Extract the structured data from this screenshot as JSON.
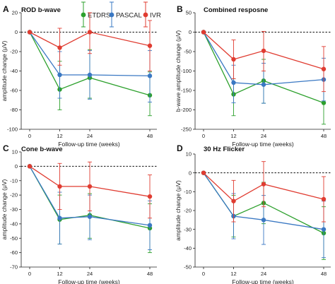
{
  "legend": {
    "series": [
      {
        "name": "ETDRS",
        "color": "#2ca02c"
      },
      {
        "name": "PASCAL",
        "color": "#3a78c3"
      },
      {
        "name": "IVR",
        "color": "#e03c31"
      }
    ]
  },
  "chart_data": [
    {
      "type": "line",
      "letter": "A",
      "title": "ROD b-wave",
      "xlabel": "Follow-up time (weeks)",
      "ylabel": "amplitude change (μV)",
      "x_ticks": [
        0,
        12,
        24,
        48
      ],
      "x_tick_labels": [
        "0",
        "12",
        "24",
        "48"
      ],
      "ylim": [
        -100,
        20
      ],
      "y_ticks": [
        -100,
        -80,
        -60,
        -40,
        -20,
        0,
        20
      ],
      "y_tick_labels": [
        "-100",
        "-80",
        "-60",
        "-40",
        "-20",
        "0",
        "20"
      ],
      "reference_line": 0,
      "series": [
        {
          "name": "ETDRS",
          "x": [
            0,
            12,
            24,
            48
          ],
          "values": [
            0,
            -59,
            -47,
            -65
          ],
          "err_up": [
            0,
            29,
            29,
            24
          ],
          "err_down": [
            0,
            21,
            21,
            21
          ]
        },
        {
          "name": "PASCAL",
          "x": [
            0,
            12,
            24,
            48
          ],
          "values": [
            0,
            -44,
            -44,
            -45
          ],
          "err_up": [
            0,
            24,
            25,
            26
          ],
          "err_down": [
            0,
            24,
            25,
            27
          ]
        },
        {
          "name": "IVR",
          "x": [
            0,
            12,
            24,
            48
          ],
          "values": [
            0,
            -16,
            0,
            -14
          ],
          "err_up": [
            0,
            20,
            20,
            26
          ],
          "err_down": [
            0,
            18,
            22,
            26
          ]
        }
      ]
    },
    {
      "type": "line",
      "letter": "B",
      "title": "Combined resposne",
      "xlabel": "Follow-up time (weeks)",
      "ylabel": "b-wave amplitude change (μV)",
      "x_ticks": [
        0,
        12,
        24,
        48
      ],
      "x_tick_labels": [
        "0",
        "12",
        "24",
        "48"
      ],
      "ylim": [
        -250,
        50
      ],
      "y_ticks": [
        -250,
        -200,
        -150,
        -100,
        -50,
        0,
        50
      ],
      "y_tick_labels": [
        "-250",
        "-200",
        "-150",
        "-100",
        "-50",
        "0",
        "50"
      ],
      "reference_line": 0,
      "series": [
        {
          "name": "ETDRS",
          "x": [
            0,
            12,
            24,
            48
          ],
          "values": [
            0,
            -160,
            -125,
            -182
          ],
          "err_up": [
            0,
            40,
            55,
            60
          ],
          "err_down": [
            0,
            55,
            58,
            55
          ]
        },
        {
          "name": "PASCAL",
          "x": [
            0,
            12,
            24,
            48
          ],
          "values": [
            0,
            -130,
            -135,
            -122
          ],
          "err_up": [
            0,
            45,
            55,
            55
          ],
          "err_down": [
            0,
            52,
            48,
            55
          ]
        },
        {
          "name": "IVR",
          "x": [
            0,
            12,
            24,
            48
          ],
          "values": [
            0,
            -70,
            -48,
            -95
          ],
          "err_up": [
            0,
            50,
            50,
            58
          ],
          "err_down": [
            0,
            50,
            52,
            58
          ]
        }
      ]
    },
    {
      "type": "line",
      "letter": "C",
      "title": "Cone b-wave",
      "xlabel": "Follow-up time (weeks)",
      "ylabel": "amplitude change (μV)",
      "x_ticks": [
        0,
        12,
        24,
        48
      ],
      "x_tick_labels": [
        "0",
        "12",
        "24",
        "48"
      ],
      "ylim": [
        -70,
        10
      ],
      "y_ticks": [
        -70,
        -60,
        -50,
        -40,
        -30,
        -20,
        -10,
        0,
        10
      ],
      "y_tick_labels": [
        "-70",
        "-60",
        "-50",
        "-40",
        "-30",
        "-20",
        "-10",
        "0",
        "10"
      ],
      "reference_line": 0,
      "series": [
        {
          "name": "ETDRS",
          "x": [
            0,
            12,
            24,
            48
          ],
          "values": [
            0,
            -37,
            -34,
            -43
          ],
          "err_up": [
            0,
            17,
            15,
            17
          ],
          "err_down": [
            0,
            17,
            16,
            17
          ]
        },
        {
          "name": "PASCAL",
          "x": [
            0,
            12,
            24,
            48
          ],
          "values": [
            0,
            -36,
            -35,
            -41
          ],
          "err_up": [
            0,
            18,
            15,
            17
          ],
          "err_down": [
            0,
            18,
            16,
            17
          ]
        },
        {
          "name": "IVR",
          "x": [
            0,
            12,
            24,
            48
          ],
          "values": [
            0,
            -14,
            -14,
            -21
          ],
          "err_up": [
            0,
            16,
            17,
            15
          ],
          "err_down": [
            0,
            16,
            17,
            15
          ]
        }
      ]
    },
    {
      "type": "line",
      "letter": "D",
      "title": "30 Hz Flicker",
      "xlabel": "Follow-up time (weeks)",
      "ylabel": "amplitude change (μV)",
      "x_ticks": [
        0,
        12,
        24,
        48
      ],
      "x_tick_labels": [
        "0",
        "12",
        "24",
        "48"
      ],
      "ylim": [
        -50,
        10
      ],
      "y_ticks": [
        -50,
        -40,
        -30,
        -20,
        -10,
        0,
        10
      ],
      "y_tick_labels": [
        "-50",
        "-40",
        "-30",
        "-20",
        "-10",
        "0",
        "10"
      ],
      "reference_line": 0,
      "series": [
        {
          "name": "ETDRS",
          "x": [
            0,
            12,
            24,
            48
          ],
          "values": [
            0,
            -23,
            -16,
            -32
          ],
          "err_up": [
            0,
            11,
            11,
            14
          ],
          "err_down": [
            0,
            11,
            11,
            14
          ]
        },
        {
          "name": "PASCAL",
          "x": [
            0,
            12,
            24,
            48
          ],
          "values": [
            0,
            -23,
            -25,
            -30
          ],
          "err_up": [
            0,
            12,
            13,
            15
          ],
          "err_down": [
            0,
            12,
            13,
            15
          ]
        },
        {
          "name": "IVR",
          "x": [
            0,
            12,
            24,
            48
          ],
          "values": [
            0,
            -15,
            -6,
            -14
          ],
          "err_up": [
            0,
            11,
            12,
            12
          ],
          "err_down": [
            0,
            11,
            12,
            12
          ]
        }
      ]
    }
  ]
}
